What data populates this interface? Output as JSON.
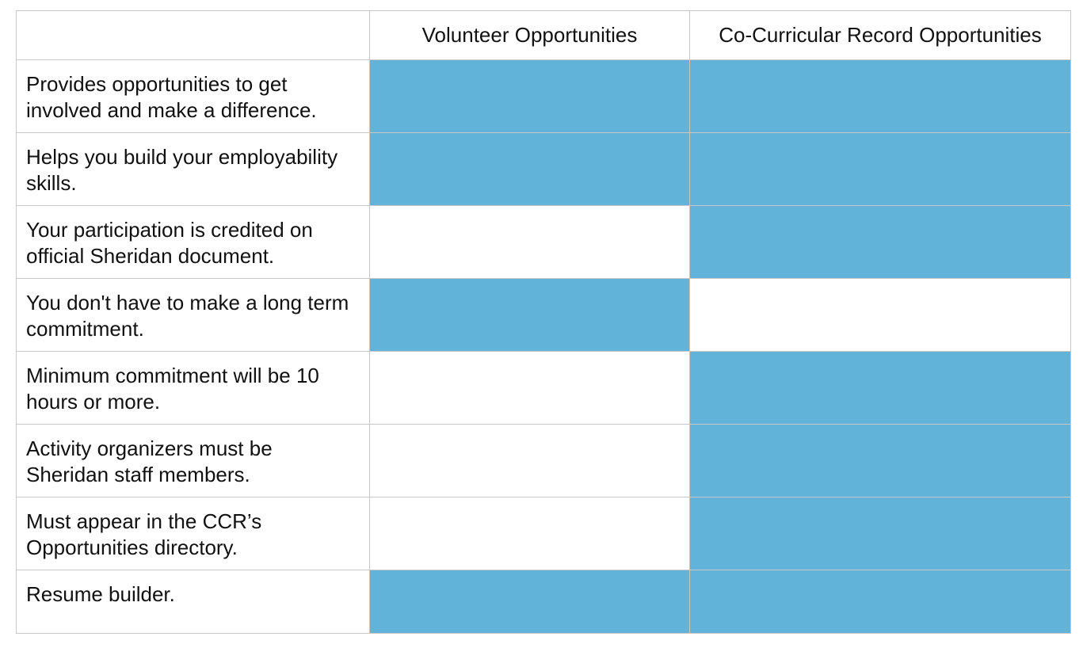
{
  "table": {
    "corner": "",
    "columns": [
      "Volunteer Opportunities",
      "Co-Curricular Record Opportunities"
    ],
    "highlight_color": "#62b3da",
    "rows": [
      {
        "label": "Provides opportunities to get involved and make a difference.",
        "cells": [
          true,
          true
        ]
      },
      {
        "label": "Helps you build your employability skills.",
        "cells": [
          true,
          true
        ]
      },
      {
        "label": "Your participation is credited on official Sheridan document.",
        "cells": [
          false,
          true
        ]
      },
      {
        "label": "You don't have to make a long term commitment.",
        "cells": [
          true,
          false
        ]
      },
      {
        "label": "Minimum commitment will be 10 hours or more.",
        "cells": [
          false,
          true
        ]
      },
      {
        "label": "Activity organizers must be Sheridan staff members.",
        "cells": [
          false,
          true
        ]
      },
      {
        "label": "Must appear in the CCR’s Opportunities directory.",
        "cells": [
          false,
          true
        ]
      },
      {
        "label": "Resume builder.",
        "cells": [
          true,
          true
        ]
      }
    ]
  }
}
